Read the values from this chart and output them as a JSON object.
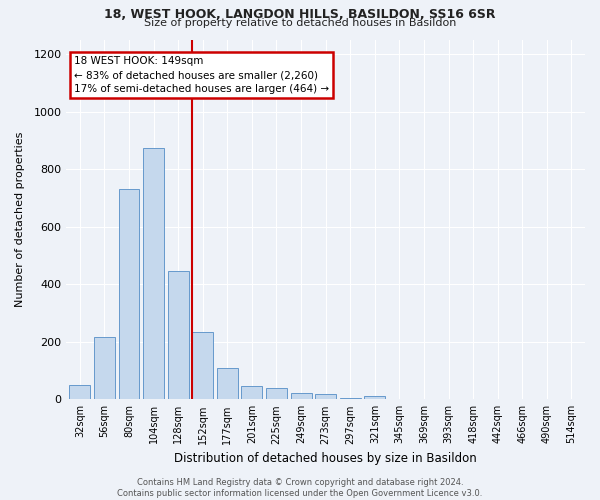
{
  "title": "18, WEST HOOK, LANGDON HILLS, BASILDON, SS16 6SR",
  "subtitle": "Size of property relative to detached houses in Basildon",
  "xlabel": "Distribution of detached houses by size in Basildon",
  "ylabel": "Number of detached properties",
  "bar_color": "#c5d8ed",
  "bar_edge_color": "#6699cc",
  "background_color": "#eef2f8",
  "categories": [
    "32sqm",
    "56sqm",
    "80sqm",
    "104sqm",
    "128sqm",
    "152sqm",
    "177sqm",
    "201sqm",
    "225sqm",
    "249sqm",
    "273sqm",
    "297sqm",
    "321sqm",
    "345sqm",
    "369sqm",
    "393sqm",
    "418sqm",
    "442sqm",
    "466sqm",
    "490sqm",
    "514sqm"
  ],
  "values": [
    50,
    218,
    730,
    875,
    448,
    235,
    108,
    45,
    38,
    22,
    18,
    5,
    10,
    0,
    0,
    0,
    0,
    0,
    0,
    0,
    0
  ],
  "red_line_bar_index": 5,
  "annotation_text": "18 WEST HOOK: 149sqm\n← 83% of detached houses are smaller (2,260)\n17% of semi-detached houses are larger (464) →",
  "annotation_box_color": "#ffffff",
  "annotation_box_edge": "#cc0000",
  "red_line_color": "#cc0000",
  "ylim": [
    0,
    1250
  ],
  "yticks": [
    0,
    200,
    400,
    600,
    800,
    1000,
    1200
  ],
  "grid_color": "#ffffff",
  "footnote": "Contains HM Land Registry data © Crown copyright and database right 2024.\nContains public sector information licensed under the Open Government Licence v3.0."
}
